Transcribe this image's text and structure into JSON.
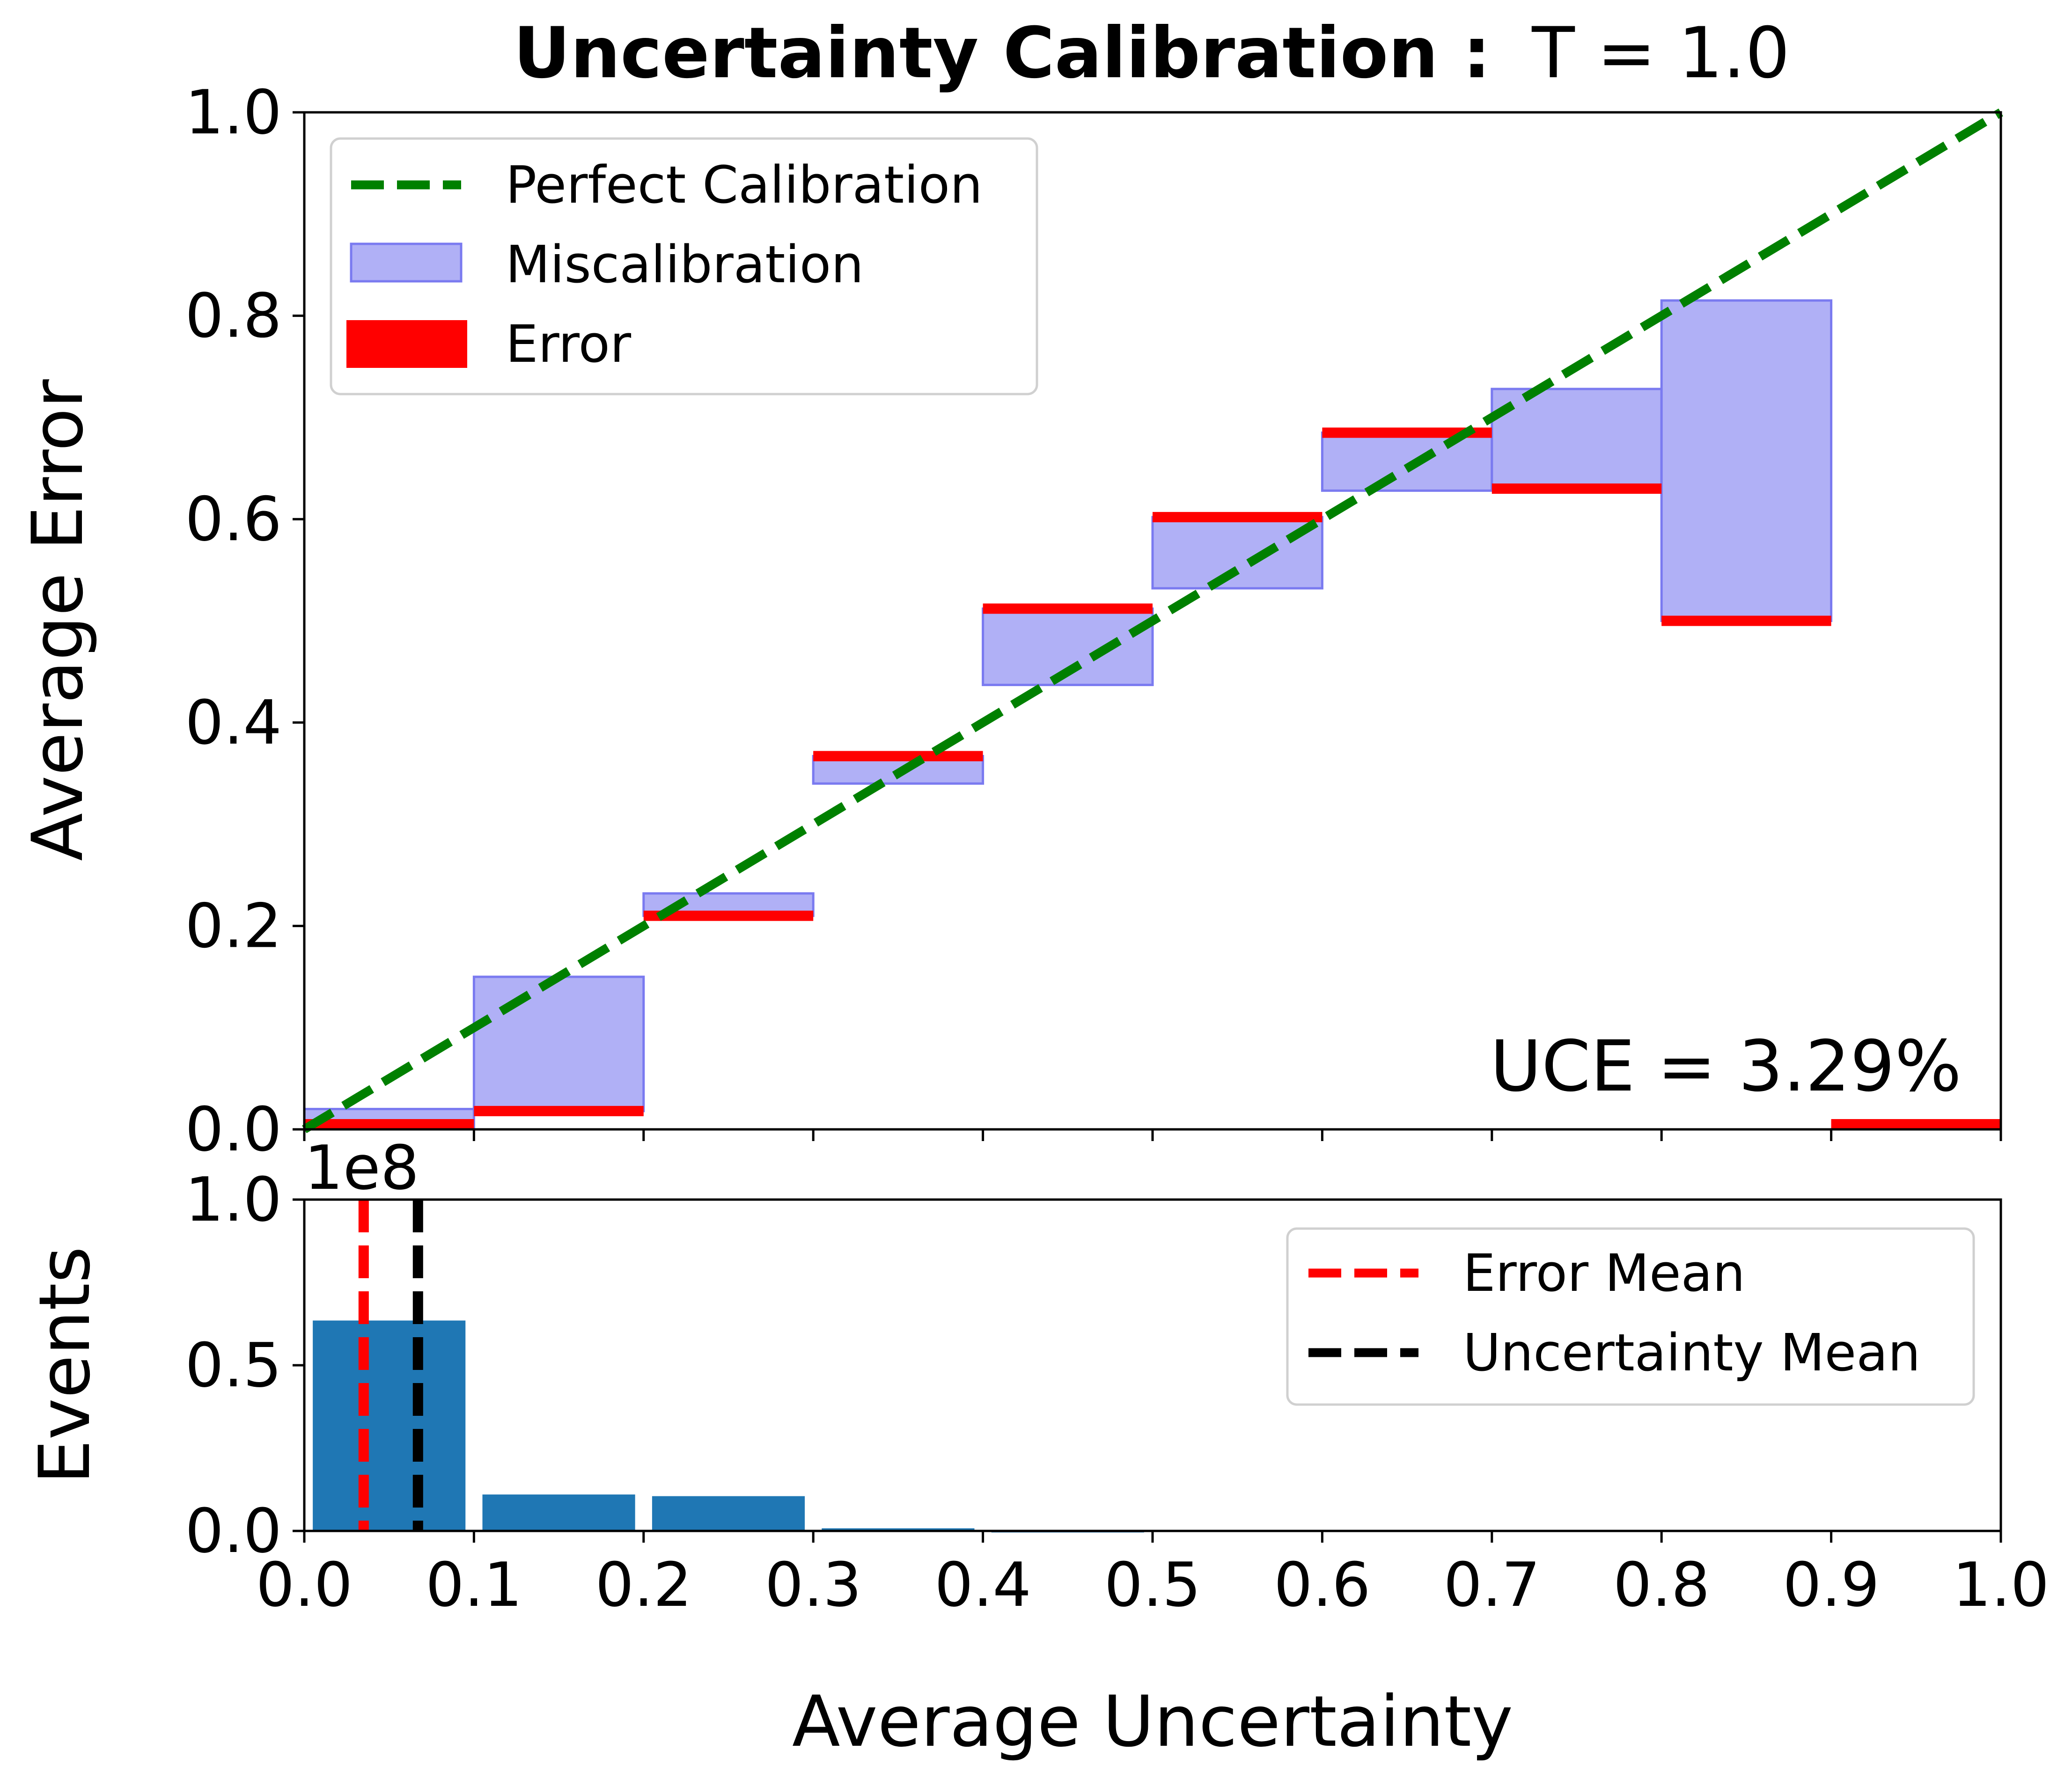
{
  "chart_data": [
    {
      "type": "bar",
      "title_bold": "Uncertainty Calibration :",
      "title_rest": "T = 1.0",
      "xlabel": "Average Uncertainty",
      "ylabel": "Average Error",
      "xlim": [
        0.0,
        1.0
      ],
      "ylim": [
        0.0,
        1.0
      ],
      "yticks": [
        "0.0",
        "0.2",
        "0.4",
        "0.6",
        "0.8",
        "1.0"
      ],
      "bin_edges": [
        0.0,
        0.1,
        0.2,
        0.3,
        0.4,
        0.5,
        0.6,
        0.7,
        0.8,
        0.9,
        1.0
      ],
      "bin_centers": [
        0.05,
        0.15,
        0.25,
        0.35,
        0.45,
        0.55,
        0.65,
        0.75,
        0.85,
        0.95
      ],
      "error_values": [
        0.005,
        0.018,
        0.21,
        0.367,
        0.512,
        0.602,
        0.685,
        0.63,
        0.5,
        0.0
      ],
      "miscalibration_bottom": [
        0.0,
        0.018,
        0.21,
        0.34,
        0.437,
        0.532,
        0.628,
        0.63,
        0.5,
        0.0
      ],
      "miscalibration_top": [
        0.02,
        0.15,
        0.232,
        0.367,
        0.512,
        0.602,
        0.685,
        0.728,
        0.815,
        0.0
      ],
      "perfect_calibration": {
        "x": [
          0.0,
          1.0
        ],
        "y": [
          0.0,
          1.0
        ]
      },
      "legend": [
        "Perfect Calibration",
        "Miscalibration",
        "Error"
      ],
      "legend_position": "upper-left",
      "annotation": "UCE = 3.29%",
      "colors": {
        "perfect": "#008000",
        "miscal_fill": "#b0b0f6",
        "miscal_edge": "#7a7af0",
        "error": "#ff0000"
      }
    },
    {
      "type": "bar",
      "xlabel": "Average Uncertainty",
      "ylabel": "Events",
      "scale_label": "1e8",
      "xlim": [
        0.0,
        1.0
      ],
      "ylim": [
        0.0,
        1.0
      ],
      "xticks": [
        "0.0",
        "0.1",
        "0.2",
        "0.3",
        "0.4",
        "0.5",
        "0.6",
        "0.7",
        "0.8",
        "0.9",
        "1.0"
      ],
      "yticks": [
        "0.0",
        "0.5",
        "1.0"
      ],
      "bin_centers": [
        0.05,
        0.15,
        0.25,
        0.35,
        0.45,
        0.55,
        0.65,
        0.75,
        0.85,
        0.95
      ],
      "values": [
        0.635,
        0.11,
        0.105,
        0.008,
        0.001,
        0.0,
        0.0,
        0.0,
        0.0,
        0.0
      ],
      "error_mean": 0.035,
      "uncertainty_mean": 0.067,
      "legend": [
        "Error Mean",
        "Uncertainty Mean"
      ],
      "legend_position": "upper-right",
      "colors": {
        "bars": "#1f77b4",
        "error_mean": "#ff0000",
        "uncertainty_mean": "#000000"
      }
    }
  ]
}
